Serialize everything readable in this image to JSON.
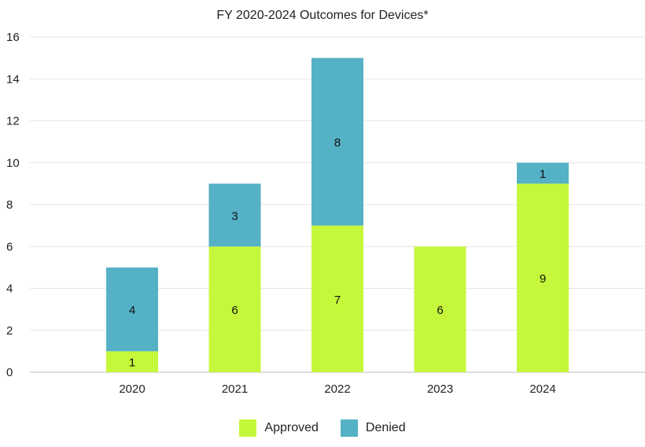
{
  "chart_data": {
    "type": "bar",
    "stacked": true,
    "title": "FY 2020-2024 Outcomes for Devices*",
    "categories": [
      "2020",
      "2021",
      "2022",
      "2023",
      "2024"
    ],
    "series": [
      {
        "name": "Approved",
        "color": "#c5f73b",
        "values": [
          1,
          6,
          7,
          6,
          9
        ]
      },
      {
        "name": "Denied",
        "color": "#55b1c6",
        "values": [
          4,
          3,
          8,
          0,
          1
        ]
      }
    ],
    "ylim": [
      0,
      16
    ],
    "yticks": [
      "0",
      "2",
      "4",
      "6",
      "8",
      "10",
      "12",
      "14",
      "16"
    ],
    "xlabel": "",
    "ylabel": "",
    "grid": true,
    "legend": "bottom"
  }
}
